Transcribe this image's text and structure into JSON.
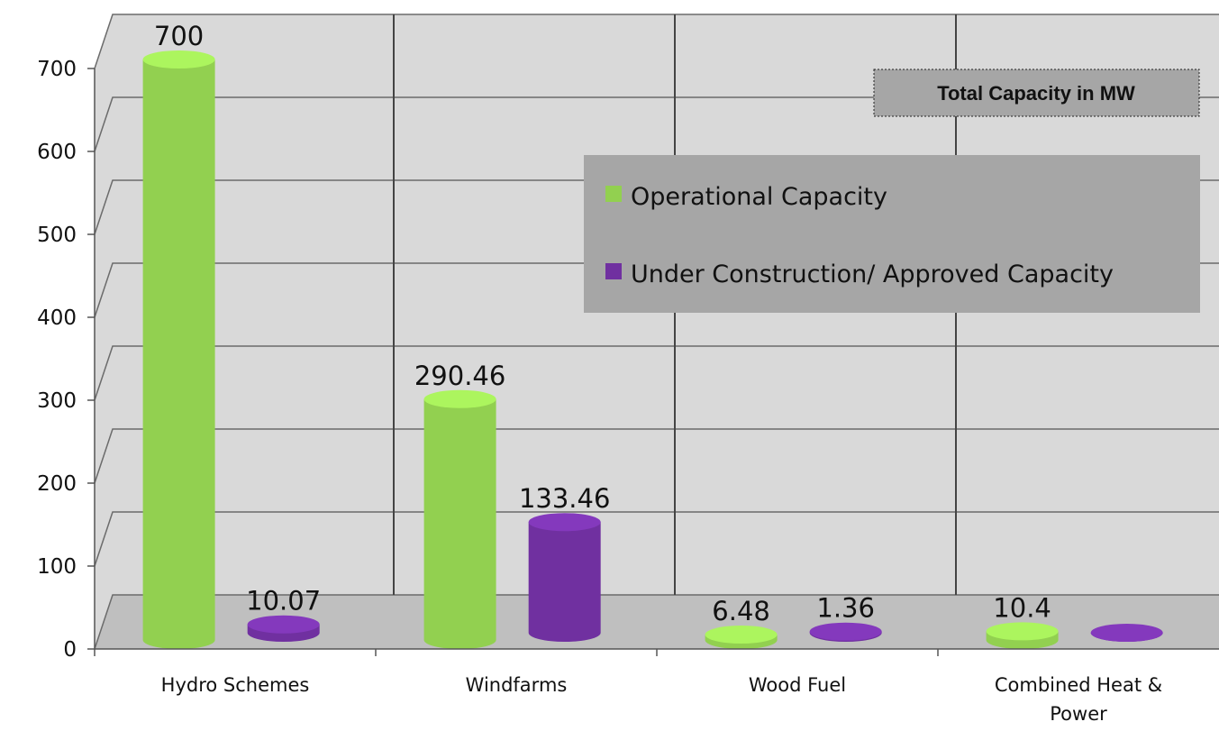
{
  "chart_data": {
    "type": "bar",
    "style": "3d-cylinder",
    "title": "Total Capacity in MW",
    "categories": [
      "Hydro Schemes",
      "Windfarms",
      "Wood Fuel",
      "Combined Heat & Power"
    ],
    "series": [
      {
        "name": "Operational Capacity",
        "color": "#92d050",
        "values": [
          700,
          290.46,
          6.48,
          10.4
        ]
      },
      {
        "name": "Under Construction/ Approved Capacity",
        "color": "#7030a0",
        "values": [
          10.07,
          133.46,
          1.36,
          0
        ]
      }
    ],
    "data_labels": [
      {
        "text": "700",
        "series": 0,
        "category": 0
      },
      {
        "text": "10.07",
        "series": 1,
        "category": 0
      },
      {
        "text": "290.46",
        "series": 0,
        "category": 1
      },
      {
        "text": "133.46",
        "series": 1,
        "category": 1
      },
      {
        "text": "6.48",
        "series": 0,
        "category": 2
      },
      {
        "text": "1.36",
        "series": 1,
        "category": 2
      },
      {
        "text": "10.4",
        "series": 0,
        "category": 3
      }
    ],
    "yticks": [
      "0",
      "100",
      "200",
      "300",
      "400",
      "500",
      "600",
      "700"
    ],
    "ylim": [
      0,
      700
    ],
    "grid": true,
    "legend": {
      "position": "right",
      "background": "#a6a6a6"
    },
    "title_box": {
      "position": "top-right",
      "background": "#a6a6a6"
    },
    "wall_color": "#d9d9d9",
    "floor_color": "#bfbfbf"
  }
}
